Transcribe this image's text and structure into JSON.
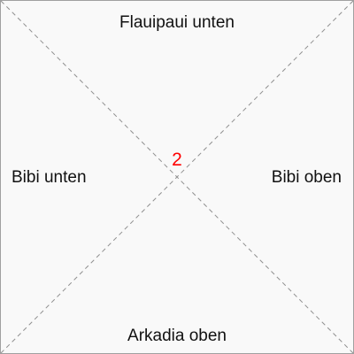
{
  "zones": {
    "top": "Flauipaui unten",
    "left": "Bibi unten",
    "right": "Bibi oben",
    "bottom": "Arkadia oben"
  },
  "center": {
    "value": "2",
    "color": "#ff0000"
  },
  "colors": {
    "diagonal_line": "#909090",
    "border": "#a0a0a0",
    "background": "#f9f9f9"
  }
}
